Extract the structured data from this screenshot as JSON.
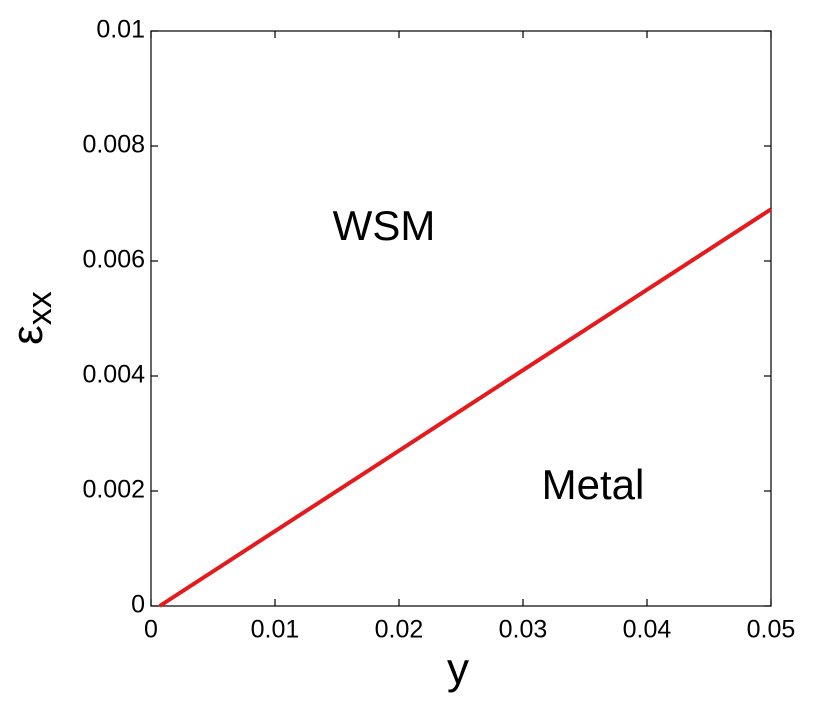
{
  "chart_data": {
    "type": "line",
    "xlabel": "y",
    "ylabel": {
      "symbol": "ε",
      "subscript": "xx"
    },
    "x": [
      0.0007,
      0.05
    ],
    "series": [
      {
        "color": "#e41a1c",
        "values": [
          0,
          0.0069
        ]
      }
    ],
    "xlim": [
      0,
      0.05
    ],
    "xticks": [
      0,
      0.01,
      0.02,
      0.03,
      0.04,
      0.05
    ],
    "ylim": [
      0,
      0.01
    ],
    "yticks": [
      0,
      0.002,
      0.004,
      0.006,
      0.008,
      0.01
    ],
    "annotations": [
      "WSM",
      "Metal"
    ]
  }
}
